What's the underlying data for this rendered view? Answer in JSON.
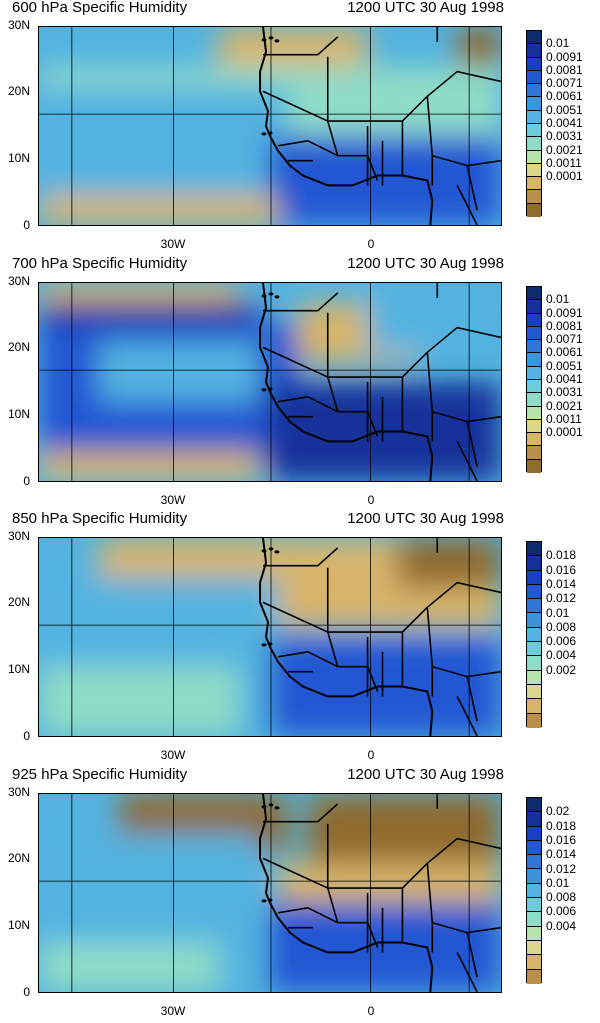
{
  "panels": [
    {
      "title": "600 hPa Specific Humidity",
      "time": "1200 UTC 30 Aug 1998",
      "colorbar": {
        "labels": [
          "0.01",
          "0.0091",
          "0.0081",
          "0.0071",
          "0.0061",
          "0.0051",
          "0.0041",
          "0.0031",
          "0.0021",
          "0.0011",
          "0.0001"
        ],
        "colors": [
          "#0d2c6e",
          "#15309a",
          "#1a3fc2",
          "#2356d3",
          "#2f74d9",
          "#3e94dc",
          "#53b3e0",
          "#6cccd8",
          "#8fdcc8",
          "#b8e3ab",
          "#dcd68f",
          "#d7b46a",
          "#b98f4a",
          "#8f6b2e"
        ]
      }
    },
    {
      "title": "700 hPa Specific Humidity",
      "time": "1200 UTC 30 Aug 1998",
      "colorbar": {
        "labels": [
          "0.01",
          "0.0091",
          "0.0081",
          "0.0071",
          "0.0061",
          "0.0051",
          "0.0041",
          "0.0031",
          "0.0021",
          "0.0011",
          "0.0001"
        ],
        "colors": [
          "#0d2c6e",
          "#15309a",
          "#1a3fc2",
          "#2356d3",
          "#2f74d9",
          "#3e94dc",
          "#53b3e0",
          "#6cccd8",
          "#8fdcc8",
          "#b8e3ab",
          "#dcd68f",
          "#d7b46a",
          "#b98f4a",
          "#8f6b2e"
        ]
      }
    },
    {
      "title": "850 hPa Specific Humidity",
      "time": "1200 UTC 30 Aug 1998",
      "colorbar": {
        "labels": [
          "0.018",
          "0.016",
          "0.014",
          "0.012",
          "0.01",
          "0.008",
          "0.006",
          "0.004",
          "0.002"
        ],
        "colors": [
          "#0d2c6e",
          "#15309a",
          "#1a3fc2",
          "#2356d3",
          "#2f74d9",
          "#3e94dc",
          "#53b3e0",
          "#6cccd8",
          "#8fdcc8",
          "#b8e3ab",
          "#dcd68f",
          "#d7b46a",
          "#b98f4a"
        ]
      }
    },
    {
      "title": "925 hPa Specific Humidity",
      "time": "1200 UTC 30 Aug 1998",
      "colorbar": {
        "labels": [
          "0.02",
          "0.018",
          "0.016",
          "0.014",
          "0.012",
          "0.01",
          "0.008",
          "0.006",
          "0.004"
        ],
        "colors": [
          "#0d2c6e",
          "#15309a",
          "#1a3fc2",
          "#2356d3",
          "#2f74d9",
          "#3e94dc",
          "#53b3e0",
          "#6cccd8",
          "#8fdcc8",
          "#b8e3ab",
          "#dcd68f",
          "#d7b46a",
          "#b98f4a"
        ]
      }
    }
  ],
  "axes": {
    "ylabels": [
      "30N",
      "20N",
      "10N",
      "0"
    ],
    "xlabels": [
      "30W",
      "0"
    ]
  },
  "palette": {
    "ocean": "#53b3e0",
    "moist": "#2356d3",
    "very_moist": "#15309a",
    "dry": "#d7b46a",
    "very_dry": "#8f6b2e",
    "mid": "#8fdcc8"
  }
}
